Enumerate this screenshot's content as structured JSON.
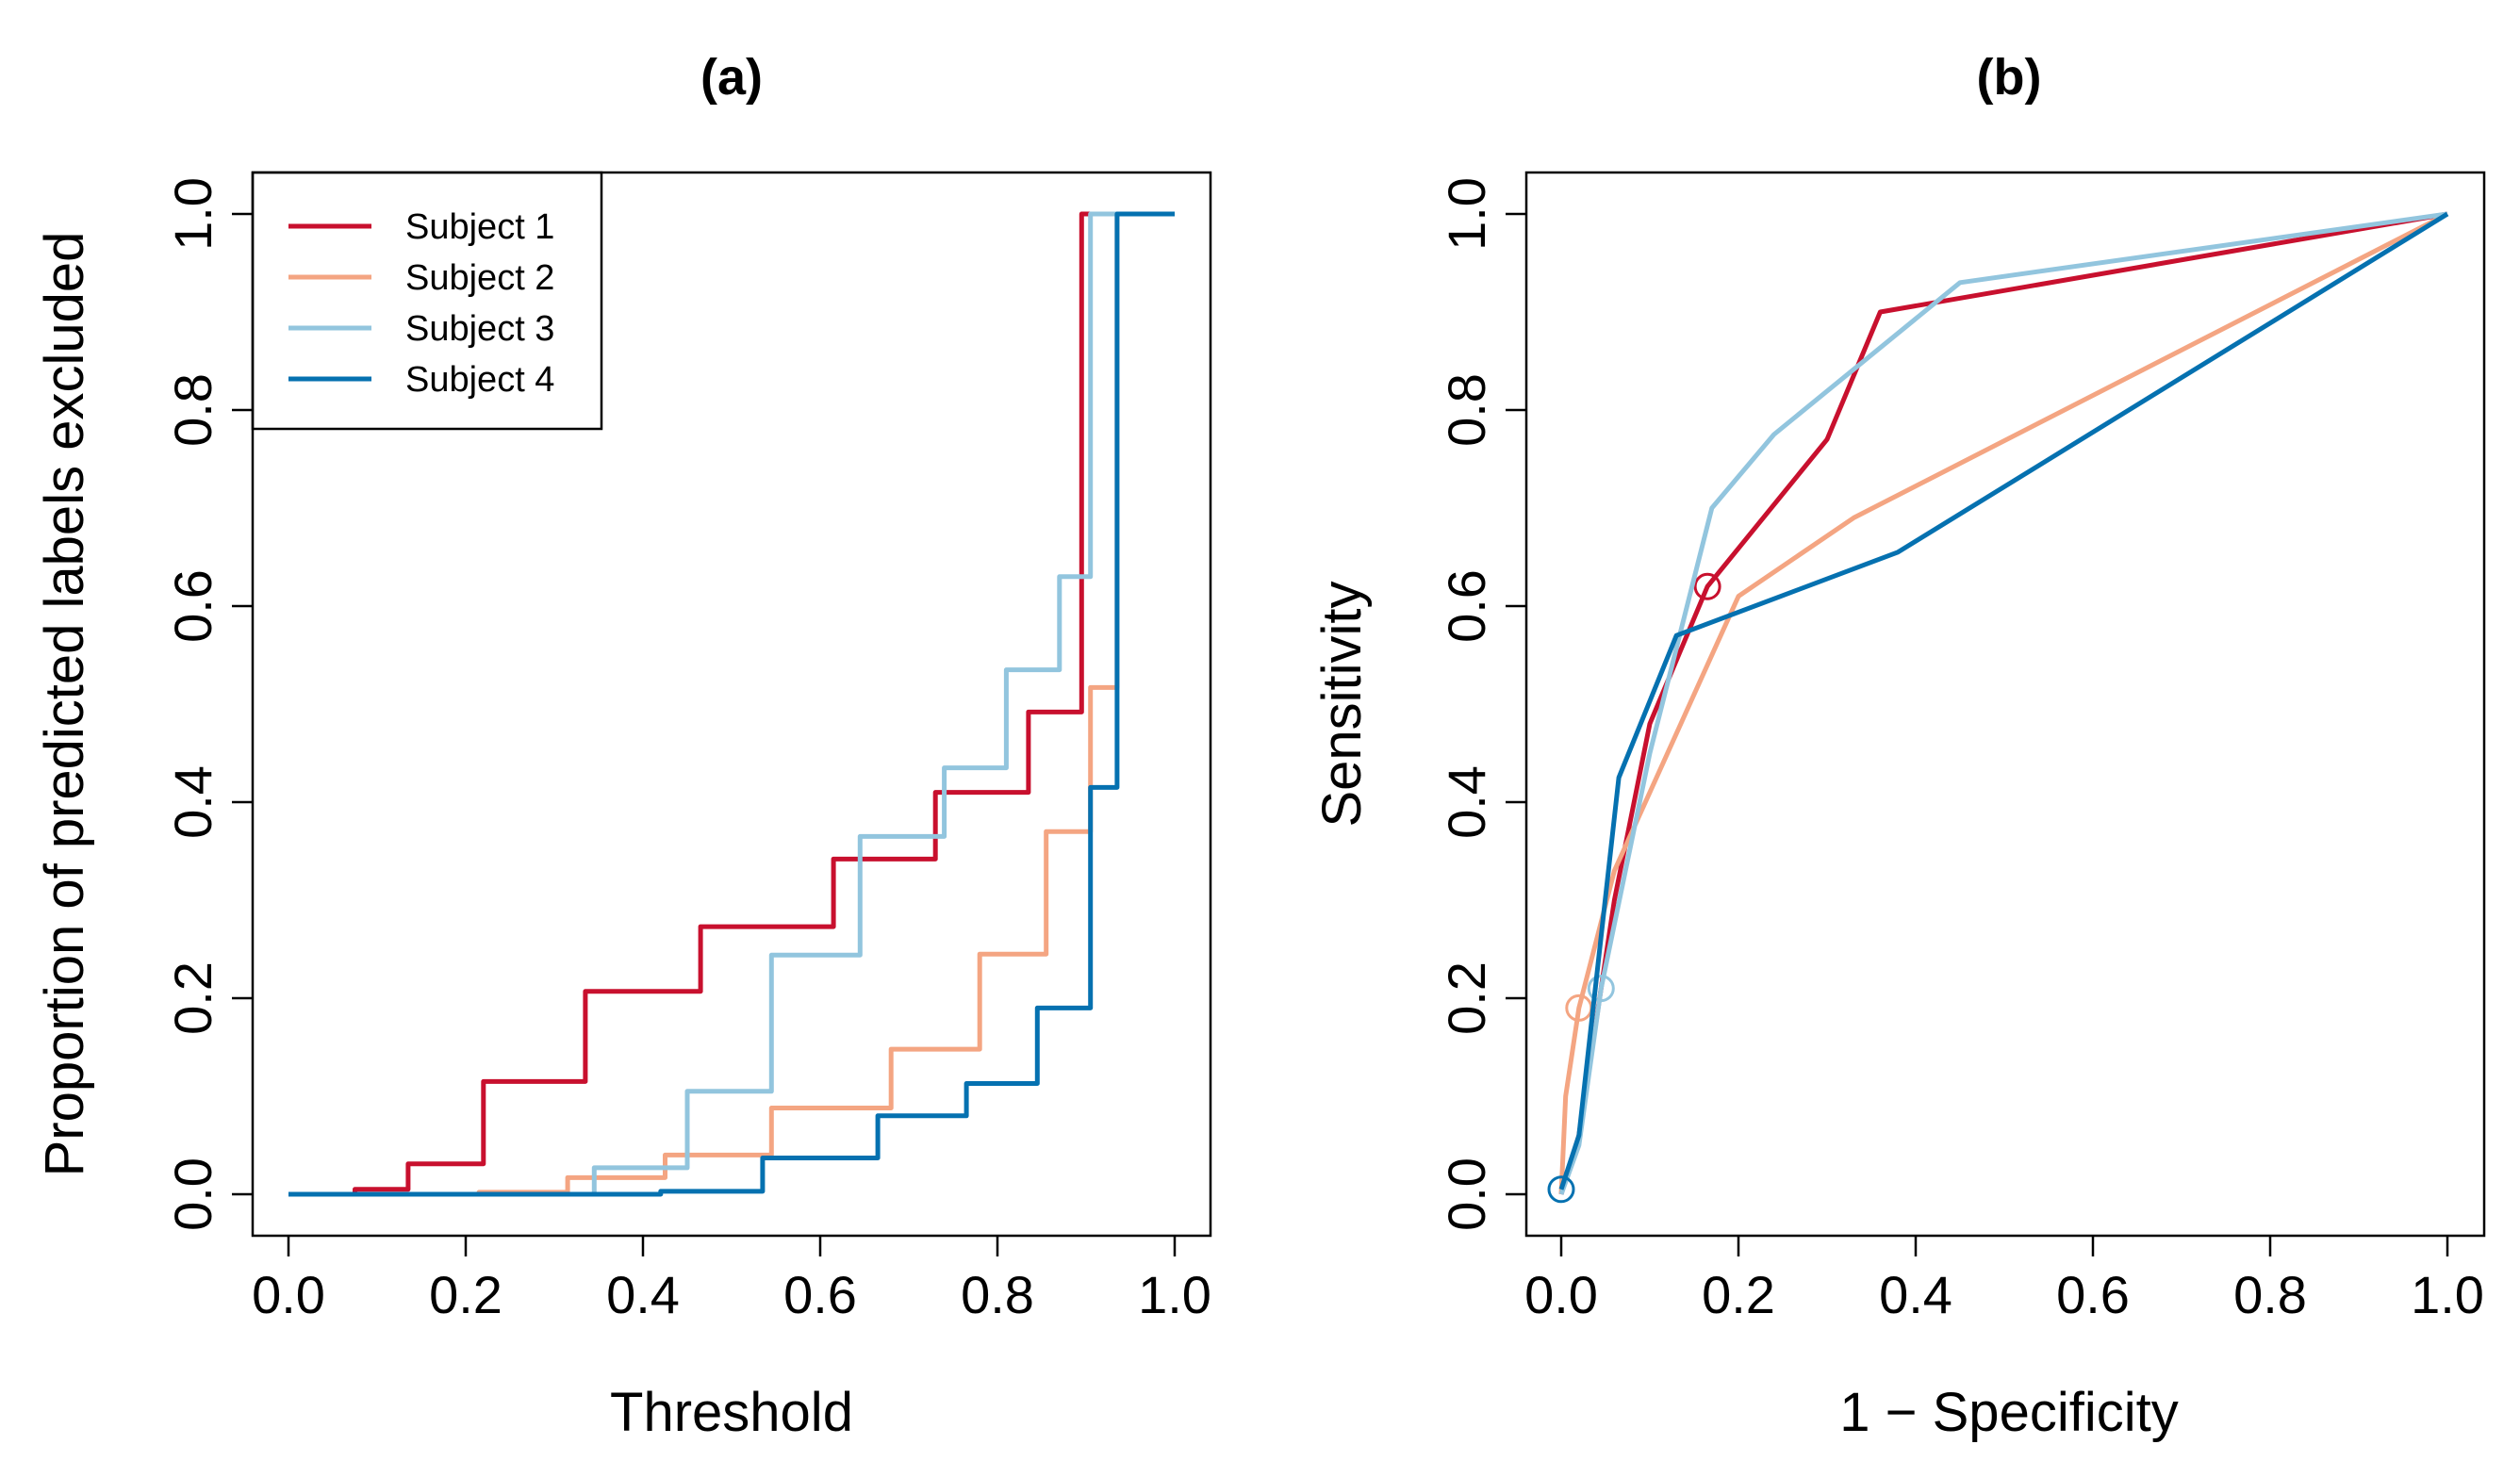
{
  "colors": {
    "subject1": "#C8102E",
    "subject2": "#F4A582",
    "subject3": "#92C5DE",
    "subject4": "#0571B0"
  },
  "chart_data": [
    {
      "type": "line",
      "step": true,
      "panel": "a",
      "title": "(a)",
      "xlabel": "Threshold",
      "ylabel": "Proportion of predicted labels excluded",
      "xlim": [
        0,
        1
      ],
      "ylim": [
        0,
        1
      ],
      "xticks": [
        "0.0",
        "0.2",
        "0.4",
        "0.6",
        "0.8",
        "1.0"
      ],
      "yticks": [
        "0.0",
        "0.2",
        "0.4",
        "0.6",
        "0.8",
        "1.0"
      ],
      "legend": {
        "position": "top-left",
        "entries": [
          "Subject 1",
          "Subject 2",
          "Subject 3",
          "Subject 4"
        ]
      },
      "series": [
        {
          "name": "Subject 1",
          "color_key": "subject1",
          "x": [
            0.0,
            0.075,
            0.135,
            0.22,
            0.335,
            0.465,
            0.615,
            0.73,
            0.835,
            0.895,
            1.0
          ],
          "y": [
            0.0,
            0.005,
            0.031,
            0.115,
            0.207,
            0.273,
            0.342,
            0.41,
            0.492,
            1.0,
            1.0
          ]
        },
        {
          "name": "Subject 2",
          "color_key": "subject2",
          "x": [
            0.0,
            0.215,
            0.315,
            0.425,
            0.545,
            0.68,
            0.78,
            0.855,
            0.905,
            0.935,
            1.0
          ],
          "y": [
            0.0,
            0.002,
            0.017,
            0.04,
            0.088,
            0.148,
            0.245,
            0.37,
            0.517,
            1.0,
            1.0
          ]
        },
        {
          "name": "Subject 3",
          "color_key": "subject3",
          "x": [
            0.0,
            0.345,
            0.45,
            0.545,
            0.645,
            0.74,
            0.81,
            0.87,
            0.905,
            1.0
          ],
          "y": [
            0.0,
            0.027,
            0.105,
            0.244,
            0.365,
            0.435,
            0.535,
            0.63,
            1.0,
            1.0
          ]
        },
        {
          "name": "Subject 4",
          "color_key": "subject4",
          "x": [
            0.0,
            0.42,
            0.535,
            0.665,
            0.765,
            0.845,
            0.905,
            0.935,
            1.0
          ],
          "y": [
            0.0,
            0.003,
            0.037,
            0.08,
            0.113,
            0.19,
            0.415,
            1.0,
            1.0
          ]
        }
      ]
    },
    {
      "type": "line",
      "panel": "b",
      "title": "(b)",
      "xlabel": "1 − Specificity",
      "ylabel": "Sensitivity",
      "xlim": [
        0,
        1
      ],
      "ylim": [
        0,
        1
      ],
      "xticks": [
        "0.0",
        "0.2",
        "0.4",
        "0.6",
        "0.8",
        "1.0"
      ],
      "yticks": [
        "0.0",
        "0.2",
        "0.4",
        "0.6",
        "0.8",
        "1.0"
      ],
      "series": [
        {
          "name": "Subject 1",
          "color_key": "subject1",
          "x": [
            0.0,
            0.02,
            0.06,
            0.1,
            0.165,
            0.3,
            0.36,
            1.0
          ],
          "y": [
            0.0,
            0.06,
            0.3,
            0.48,
            0.62,
            0.77,
            0.9,
            1.0
          ],
          "marker": [
            0.165,
            0.62
          ]
        },
        {
          "name": "Subject 2",
          "color_key": "subject2",
          "x": [
            0.0,
            0.005,
            0.02,
            0.06,
            0.2,
            0.33,
            1.0
          ],
          "y": [
            0.0,
            0.1,
            0.19,
            0.33,
            0.61,
            0.69,
            1.0
          ],
          "marker": [
            0.02,
            0.19
          ]
        },
        {
          "name": "Subject 3",
          "color_key": "subject3",
          "x": [
            0.0,
            0.02,
            0.045,
            0.1,
            0.17,
            0.24,
            0.45,
            1.0
          ],
          "y": [
            0.0,
            0.05,
            0.21,
            0.45,
            0.7,
            0.775,
            0.93,
            1.0
          ],
          "marker": [
            0.045,
            0.21
          ]
        },
        {
          "name": "Subject 4",
          "color_key": "subject4",
          "x": [
            0.0,
            0.02,
            0.065,
            0.13,
            0.38,
            1.0
          ],
          "y": [
            0.005,
            0.06,
            0.425,
            0.57,
            0.655,
            1.0
          ],
          "marker": [
            0.0,
            0.005
          ]
        }
      ]
    }
  ]
}
